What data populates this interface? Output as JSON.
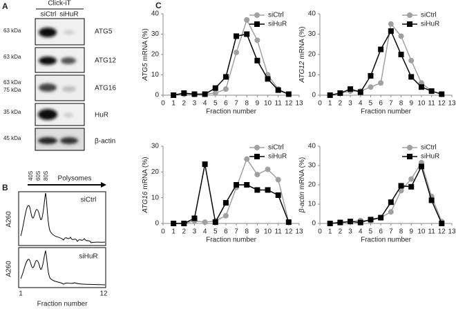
{
  "panel_a": {
    "label": "A",
    "header": "Click-iT",
    "columns": [
      "siCtrl",
      "siHuR"
    ],
    "rows": [
      {
        "sizes": [
          "63 kDa"
        ],
        "protein": "ATG5"
      },
      {
        "sizes": [
          "63 kDa"
        ],
        "protein": "ATG12"
      },
      {
        "sizes": [
          "63 kDa",
          "75 kDa"
        ],
        "protein": "ATG16"
      },
      {
        "sizes": [
          "35 kDa"
        ],
        "protein": "HuR"
      },
      {
        "sizes": [
          "45 kDa"
        ],
        "protein": "β-actin"
      }
    ]
  },
  "panel_b": {
    "label": "B",
    "markers": [
      "40S",
      "60S",
      "80S"
    ],
    "arrow_label": "Polysomes",
    "traces": [
      "siCtrl",
      "siHuR"
    ],
    "ylabel": "A260",
    "x_start": "1",
    "x_end": "12",
    "xlabel": "Fraction number"
  },
  "panel_c": {
    "label": "C"
  },
  "chart_data": [
    {
      "type": "line",
      "ylabel_gene": "ATG5",
      "ylabel": "mRNA (%)",
      "xlabel": "Fraction number",
      "x": [
        1,
        2,
        3,
        4,
        5,
        6,
        7,
        8,
        9,
        10,
        11,
        12
      ],
      "xlim": [
        0,
        13
      ],
      "xticks": [
        0,
        1,
        2,
        3,
        4,
        5,
        6,
        7,
        8,
        9,
        10,
        11,
        12,
        13
      ],
      "ylim": [
        0,
        40
      ],
      "yticks": [
        0,
        10,
        20,
        30,
        40
      ],
      "legend": "upper right",
      "series": [
        {
          "name": "siCtrl",
          "color": "#a0a0a0",
          "marker": "circle",
          "values": [
            0,
            0.5,
            0.5,
            0.5,
            1,
            3,
            21,
            37,
            27,
            10,
            3,
            0.5
          ]
        },
        {
          "name": "siHuR",
          "color": "#000000",
          "marker": "square",
          "values": [
            0,
            1,
            0.5,
            0.5,
            3.5,
            9,
            29,
            30,
            17,
            8,
            2.5,
            0.5
          ]
        }
      ]
    },
    {
      "type": "line",
      "ylabel_gene": "ATG12",
      "ylabel": "mRNA (%)",
      "xlabel": "Fraction number",
      "x": [
        1,
        2,
        3,
        4,
        5,
        6,
        7,
        8,
        9,
        10,
        11,
        12
      ],
      "xlim": [
        0,
        13
      ],
      "xticks": [
        0,
        1,
        2,
        3,
        4,
        5,
        6,
        7,
        8,
        9,
        10,
        11,
        12,
        13
      ],
      "ylim": [
        0,
        40
      ],
      "yticks": [
        0,
        10,
        20,
        30,
        40
      ],
      "legend": "upper right",
      "series": [
        {
          "name": "siCtrl",
          "color": "#a0a0a0",
          "marker": "circle",
          "values": [
            0,
            1,
            2,
            2,
            4,
            6,
            35,
            29,
            17,
            6,
            2,
            0.5
          ]
        },
        {
          "name": "siHuR",
          "color": "#000000",
          "marker": "square",
          "values": [
            0,
            1,
            3,
            1.5,
            9.5,
            22.5,
            31.5,
            20,
            9,
            4,
            2,
            0.5
          ]
        }
      ]
    },
    {
      "type": "line",
      "ylabel_gene": "ATG16",
      "ylabel": "mRNA (%)",
      "xlabel": "Fraction number",
      "x": [
        1,
        2,
        3,
        4,
        5,
        6,
        7,
        8,
        9,
        10,
        11,
        12
      ],
      "xlim": [
        0,
        13
      ],
      "xticks": [
        0,
        1,
        2,
        3,
        4,
        5,
        6,
        7,
        8,
        9,
        10,
        11,
        12,
        13
      ],
      "ylim": [
        0,
        30
      ],
      "yticks": [
        0,
        10,
        20,
        30
      ],
      "legend": "upper right",
      "series": [
        {
          "name": "siCtrl",
          "color": "#a0a0a0",
          "marker": "circle",
          "values": [
            0,
            0,
            1,
            0.5,
            1,
            3,
            14,
            25,
            19,
            21,
            17,
            0.5
          ]
        },
        {
          "name": "siHuR",
          "color": "#000000",
          "marker": "square",
          "values": [
            0,
            0,
            2,
            23,
            0.5,
            8,
            15,
            15,
            13,
            13,
            11,
            0.5
          ]
        }
      ]
    },
    {
      "type": "line",
      "ylabel_gene": "β-actin",
      "ylabel": "mRNA (%)",
      "xlabel": "Fraction number",
      "x": [
        1,
        2,
        3,
        4,
        5,
        6,
        7,
        8,
        9,
        10,
        11,
        12
      ],
      "xlim": [
        0,
        13
      ],
      "xticks": [
        0,
        1,
        2,
        3,
        4,
        5,
        6,
        7,
        8,
        9,
        10,
        11,
        12,
        13
      ],
      "ylim": [
        0,
        40
      ],
      "yticks": [
        0,
        10,
        20,
        30,
        40
      ],
      "legend": "upper right",
      "series": [
        {
          "name": "siCtrl",
          "color": "#a0a0a0",
          "marker": "circle",
          "values": [
            0,
            0.5,
            1,
            1.5,
            1.5,
            3,
            6,
            17,
            23,
            31.5,
            14,
            1
          ]
        },
        {
          "name": "siHuR",
          "color": "#000000",
          "marker": "square",
          "values": [
            0,
            0.5,
            1,
            0.5,
            2,
            3,
            11,
            19.5,
            19,
            29.5,
            12,
            0
          ]
        }
      ]
    }
  ]
}
